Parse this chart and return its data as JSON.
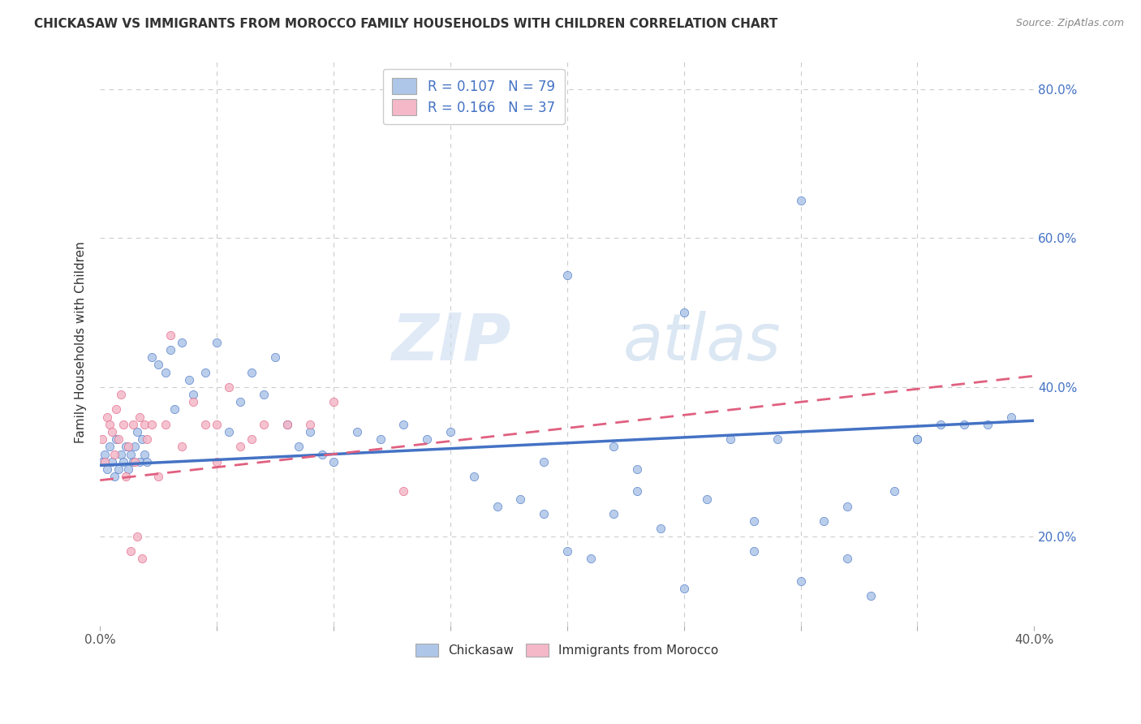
{
  "title": "CHICKASAW VS IMMIGRANTS FROM MOROCCO FAMILY HOUSEHOLDS WITH CHILDREN CORRELATION CHART",
  "source": "Source: ZipAtlas.com",
  "ylabel": "Family Households with Children",
  "xlim": [
    0.0,
    0.4
  ],
  "ylim": [
    0.08,
    0.84
  ],
  "chickasaw_color": "#aec6e8",
  "morocco_color": "#f4b8c8",
  "trendline_blue": "#4472c4",
  "trendline_pink": "#e06080",
  "chick_trend_x0": 0.0,
  "chick_trend_y0": 0.295,
  "chick_trend_x1": 0.4,
  "chick_trend_y1": 0.355,
  "mor_trend_x0": 0.0,
  "mor_trend_y0": 0.275,
  "mor_trend_x1": 0.4,
  "mor_trend_y1": 0.415,
  "chickasaw_x": [
    0.001,
    0.002,
    0.003,
    0.004,
    0.005,
    0.006,
    0.007,
    0.008,
    0.009,
    0.01,
    0.011,
    0.012,
    0.013,
    0.014,
    0.015,
    0.016,
    0.017,
    0.018,
    0.019,
    0.02,
    0.022,
    0.025,
    0.028,
    0.03,
    0.032,
    0.035,
    0.038,
    0.04,
    0.045,
    0.05,
    0.055,
    0.06,
    0.065,
    0.07,
    0.075,
    0.08,
    0.085,
    0.09,
    0.095,
    0.1,
    0.11,
    0.12,
    0.13,
    0.14,
    0.15,
    0.16,
    0.17,
    0.18,
    0.19,
    0.2,
    0.21,
    0.22,
    0.23,
    0.24,
    0.25,
    0.26,
    0.27,
    0.28,
    0.29,
    0.3,
    0.31,
    0.32,
    0.33,
    0.34,
    0.35,
    0.36,
    0.37,
    0.38,
    0.39,
    0.2,
    0.25,
    0.3,
    0.35,
    0.28,
    0.32,
    0.22,
    0.19,
    0.23
  ],
  "chickasaw_y": [
    0.3,
    0.31,
    0.29,
    0.32,
    0.3,
    0.28,
    0.33,
    0.29,
    0.31,
    0.3,
    0.32,
    0.29,
    0.31,
    0.3,
    0.32,
    0.34,
    0.3,
    0.33,
    0.31,
    0.3,
    0.44,
    0.43,
    0.42,
    0.45,
    0.37,
    0.46,
    0.41,
    0.39,
    0.42,
    0.46,
    0.34,
    0.38,
    0.42,
    0.39,
    0.44,
    0.35,
    0.32,
    0.34,
    0.31,
    0.3,
    0.34,
    0.33,
    0.35,
    0.33,
    0.34,
    0.28,
    0.24,
    0.25,
    0.23,
    0.18,
    0.17,
    0.23,
    0.26,
    0.21,
    0.13,
    0.25,
    0.33,
    0.18,
    0.33,
    0.14,
    0.22,
    0.17,
    0.12,
    0.26,
    0.33,
    0.35,
    0.35,
    0.35,
    0.36,
    0.55,
    0.5,
    0.65,
    0.33,
    0.22,
    0.24,
    0.32,
    0.3,
    0.29
  ],
  "morocco_x": [
    0.001,
    0.002,
    0.003,
    0.004,
    0.005,
    0.006,
    0.007,
    0.008,
    0.009,
    0.01,
    0.011,
    0.012,
    0.013,
    0.014,
    0.015,
    0.016,
    0.017,
    0.018,
    0.019,
    0.02,
    0.022,
    0.025,
    0.028,
    0.03,
    0.035,
    0.04,
    0.045,
    0.05,
    0.055,
    0.06,
    0.065,
    0.07,
    0.08,
    0.09,
    0.1,
    0.13,
    0.05
  ],
  "morocco_y": [
    0.33,
    0.3,
    0.36,
    0.35,
    0.34,
    0.31,
    0.37,
    0.33,
    0.39,
    0.35,
    0.28,
    0.32,
    0.18,
    0.35,
    0.3,
    0.2,
    0.36,
    0.17,
    0.35,
    0.33,
    0.35,
    0.28,
    0.35,
    0.47,
    0.32,
    0.38,
    0.35,
    0.35,
    0.4,
    0.32,
    0.33,
    0.35,
    0.35,
    0.35,
    0.38,
    0.26,
    0.3
  ]
}
